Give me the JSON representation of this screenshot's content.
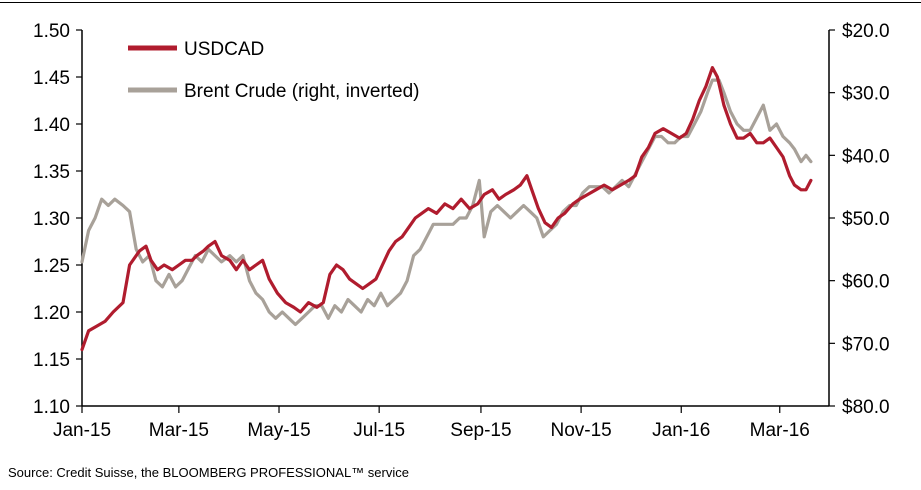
{
  "source": "Source: Credit Suisse, the BLOOMBERG PROFESSIONAL™ service",
  "chart_data": {
    "type": "line",
    "xlim": [
      "2015-01-01",
      "2016-03-31"
    ],
    "x_ticks": [
      {
        "date": "2015-01-01",
        "label": "Jan-15"
      },
      {
        "date": "2015-03-01",
        "label": "Mar-15"
      },
      {
        "date": "2015-05-01",
        "label": "May-15"
      },
      {
        "date": "2015-07-01",
        "label": "Jul-15"
      },
      {
        "date": "2015-09-01",
        "label": "Sep-15"
      },
      {
        "date": "2015-11-01",
        "label": "Nov-15"
      },
      {
        "date": "2016-01-01",
        "label": "Jan-16"
      },
      {
        "date": "2016-03-01",
        "label": "Mar-16"
      }
    ],
    "y_left": {
      "lim": [
        1.1,
        1.5
      ],
      "ticks": [
        "1.10",
        "1.15",
        "1.20",
        "1.25",
        "1.30",
        "1.35",
        "1.40",
        "1.45",
        "1.50"
      ]
    },
    "y_right": {
      "lim": [
        20,
        80
      ],
      "inverted": true,
      "ticks": [
        "$20.0",
        "$30.0",
        "$40.0",
        "$50.0",
        "$60.0",
        "$70.0",
        "$80.0"
      ]
    },
    "legend_position": "top-left",
    "grid": false,
    "series": [
      {
        "name": "USDCAD",
        "axis": "left",
        "color": "#b01c2e",
        "points": [
          [
            "2015-01-01",
            1.16
          ],
          [
            "2015-01-05",
            1.18
          ],
          [
            "2015-01-10",
            1.185
          ],
          [
            "2015-01-15",
            1.19
          ],
          [
            "2015-01-20",
            1.2
          ],
          [
            "2015-01-26",
            1.21
          ],
          [
            "2015-01-30",
            1.25
          ],
          [
            "2015-02-05",
            1.265
          ],
          [
            "2015-02-09",
            1.27
          ],
          [
            "2015-02-12",
            1.255
          ],
          [
            "2015-02-16",
            1.245
          ],
          [
            "2015-02-20",
            1.25
          ],
          [
            "2015-02-25",
            1.245
          ],
          [
            "2015-03-01",
            1.25
          ],
          [
            "2015-03-05",
            1.255
          ],
          [
            "2015-03-09",
            1.255
          ],
          [
            "2015-03-12",
            1.26
          ],
          [
            "2015-03-16",
            1.265
          ],
          [
            "2015-03-19",
            1.27
          ],
          [
            "2015-03-23",
            1.275
          ],
          [
            "2015-03-27",
            1.26
          ],
          [
            "2015-04-01",
            1.255
          ],
          [
            "2015-04-05",
            1.245
          ],
          [
            "2015-04-09",
            1.255
          ],
          [
            "2015-04-13",
            1.245
          ],
          [
            "2015-04-17",
            1.25
          ],
          [
            "2015-04-21",
            1.255
          ],
          [
            "2015-04-25",
            1.235
          ],
          [
            "2015-04-30",
            1.22
          ],
          [
            "2015-05-05",
            1.21
          ],
          [
            "2015-05-10",
            1.205
          ],
          [
            "2015-05-14",
            1.2
          ],
          [
            "2015-05-19",
            1.21
          ],
          [
            "2015-05-24",
            1.205
          ],
          [
            "2015-05-28",
            1.21
          ],
          [
            "2015-06-01",
            1.24
          ],
          [
            "2015-06-05",
            1.25
          ],
          [
            "2015-06-09",
            1.245
          ],
          [
            "2015-06-13",
            1.235
          ],
          [
            "2015-06-17",
            1.23
          ],
          [
            "2015-06-21",
            1.225
          ],
          [
            "2015-06-25",
            1.23
          ],
          [
            "2015-06-29",
            1.235
          ],
          [
            "2015-07-03",
            1.25
          ],
          [
            "2015-07-07",
            1.265
          ],
          [
            "2015-07-11",
            1.275
          ],
          [
            "2015-07-15",
            1.28
          ],
          [
            "2015-07-19",
            1.29
          ],
          [
            "2015-07-23",
            1.3
          ],
          [
            "2015-07-27",
            1.305
          ],
          [
            "2015-07-31",
            1.31
          ],
          [
            "2015-08-05",
            1.305
          ],
          [
            "2015-08-10",
            1.315
          ],
          [
            "2015-08-15",
            1.31
          ],
          [
            "2015-08-20",
            1.32
          ],
          [
            "2015-08-25",
            1.31
          ],
          [
            "2015-08-30",
            1.315
          ],
          [
            "2015-09-03",
            1.325
          ],
          [
            "2015-09-08",
            1.33
          ],
          [
            "2015-09-12",
            1.32
          ],
          [
            "2015-09-16",
            1.325
          ],
          [
            "2015-09-21",
            1.33
          ],
          [
            "2015-09-25",
            1.335
          ],
          [
            "2015-09-29",
            1.345
          ],
          [
            "2015-10-02",
            1.33
          ],
          [
            "2015-10-06",
            1.31
          ],
          [
            "2015-10-10",
            1.295
          ],
          [
            "2015-10-14",
            1.29
          ],
          [
            "2015-10-18",
            1.3
          ],
          [
            "2015-10-22",
            1.305
          ],
          [
            "2015-10-27",
            1.315
          ],
          [
            "2015-10-31",
            1.32
          ],
          [
            "2015-11-05",
            1.325
          ],
          [
            "2015-11-10",
            1.33
          ],
          [
            "2015-11-15",
            1.335
          ],
          [
            "2015-11-20",
            1.33
          ],
          [
            "2015-11-25",
            1.335
          ],
          [
            "2015-11-30",
            1.34
          ],
          [
            "2015-12-04",
            1.345
          ],
          [
            "2015-12-08",
            1.365
          ],
          [
            "2015-12-12",
            1.375
          ],
          [
            "2015-12-16",
            1.39
          ],
          [
            "2015-12-21",
            1.395
          ],
          [
            "2015-12-26",
            1.39
          ],
          [
            "2015-12-31",
            1.385
          ],
          [
            "2016-01-04",
            1.39
          ],
          [
            "2016-01-08",
            1.405
          ],
          [
            "2016-01-12",
            1.425
          ],
          [
            "2016-01-16",
            1.44
          ],
          [
            "2016-01-20",
            1.46
          ],
          [
            "2016-01-23",
            1.45
          ],
          [
            "2016-01-27",
            1.42
          ],
          [
            "2016-01-31",
            1.4
          ],
          [
            "2016-02-04",
            1.385
          ],
          [
            "2016-02-08",
            1.385
          ],
          [
            "2016-02-12",
            1.39
          ],
          [
            "2016-02-16",
            1.38
          ],
          [
            "2016-02-20",
            1.38
          ],
          [
            "2016-02-24",
            1.385
          ],
          [
            "2016-02-28",
            1.375
          ],
          [
            "2016-03-03",
            1.365
          ],
          [
            "2016-03-07",
            1.345
          ],
          [
            "2016-03-10",
            1.335
          ],
          [
            "2016-03-14",
            1.33
          ],
          [
            "2016-03-17",
            1.33
          ],
          [
            "2016-03-20",
            1.34
          ]
        ]
      },
      {
        "name": "Brent Crude (right, inverted)",
        "axis": "right",
        "color": "#a8a199",
        "points": [
          [
            "2015-01-01",
            57
          ],
          [
            "2015-01-05",
            52
          ],
          [
            "2015-01-09",
            50
          ],
          [
            "2015-01-13",
            47
          ],
          [
            "2015-01-17",
            48
          ],
          [
            "2015-01-21",
            47
          ],
          [
            "2015-01-26",
            48
          ],
          [
            "2015-01-30",
            49
          ],
          [
            "2015-02-03",
            55
          ],
          [
            "2015-02-07",
            57
          ],
          [
            "2015-02-11",
            56
          ],
          [
            "2015-02-15",
            60
          ],
          [
            "2015-02-19",
            61
          ],
          [
            "2015-02-23",
            59
          ],
          [
            "2015-02-27",
            61
          ],
          [
            "2015-03-03",
            60
          ],
          [
            "2015-03-07",
            58
          ],
          [
            "2015-03-11",
            56
          ],
          [
            "2015-03-15",
            57
          ],
          [
            "2015-03-19",
            55
          ],
          [
            "2015-03-23",
            56
          ],
          [
            "2015-03-27",
            57
          ],
          [
            "2015-04-01",
            56
          ],
          [
            "2015-04-05",
            57
          ],
          [
            "2015-04-09",
            56
          ],
          [
            "2015-04-13",
            60
          ],
          [
            "2015-04-17",
            62
          ],
          [
            "2015-04-21",
            63
          ],
          [
            "2015-04-25",
            65
          ],
          [
            "2015-04-29",
            66
          ],
          [
            "2015-05-03",
            65
          ],
          [
            "2015-05-07",
            66
          ],
          [
            "2015-05-11",
            67
          ],
          [
            "2015-05-15",
            66
          ],
          [
            "2015-05-19",
            65
          ],
          [
            "2015-05-23",
            64
          ],
          [
            "2015-05-27",
            64
          ],
          [
            "2015-05-31",
            66
          ],
          [
            "2015-06-04",
            64
          ],
          [
            "2015-06-08",
            65
          ],
          [
            "2015-06-12",
            63
          ],
          [
            "2015-06-16",
            64
          ],
          [
            "2015-06-20",
            65
          ],
          [
            "2015-06-24",
            63
          ],
          [
            "2015-06-28",
            64
          ],
          [
            "2015-07-02",
            62
          ],
          [
            "2015-07-06",
            64
          ],
          [
            "2015-07-10",
            63
          ],
          [
            "2015-07-14",
            62
          ],
          [
            "2015-07-18",
            60
          ],
          [
            "2015-07-22",
            56
          ],
          [
            "2015-07-26",
            55
          ],
          [
            "2015-07-30",
            53
          ],
          [
            "2015-08-03",
            51
          ],
          [
            "2015-08-07",
            51
          ],
          [
            "2015-08-11",
            51
          ],
          [
            "2015-08-15",
            51
          ],
          [
            "2015-08-19",
            50
          ],
          [
            "2015-08-23",
            50
          ],
          [
            "2015-08-27",
            48
          ],
          [
            "2015-08-31",
            44
          ],
          [
            "2015-09-03",
            53
          ],
          [
            "2015-09-07",
            49
          ],
          [
            "2015-09-11",
            48
          ],
          [
            "2015-09-15",
            49
          ],
          [
            "2015-09-19",
            50
          ],
          [
            "2015-09-23",
            49
          ],
          [
            "2015-09-27",
            48
          ],
          [
            "2015-10-01",
            49
          ],
          [
            "2015-10-05",
            50
          ],
          [
            "2015-10-09",
            53
          ],
          [
            "2015-10-13",
            52
          ],
          [
            "2015-10-17",
            51
          ],
          [
            "2015-10-21",
            49
          ],
          [
            "2015-10-25",
            48
          ],
          [
            "2015-10-29",
            48
          ],
          [
            "2015-11-02",
            46
          ],
          [
            "2015-11-06",
            45
          ],
          [
            "2015-11-10",
            45
          ],
          [
            "2015-11-14",
            45
          ],
          [
            "2015-11-18",
            46
          ],
          [
            "2015-11-22",
            45
          ],
          [
            "2015-11-26",
            44
          ],
          [
            "2015-11-30",
            45
          ],
          [
            "2015-12-04",
            43
          ],
          [
            "2015-12-08",
            41
          ],
          [
            "2015-12-12",
            39
          ],
          [
            "2015-12-16",
            37
          ],
          [
            "2015-12-20",
            37
          ],
          [
            "2015-12-24",
            38
          ],
          [
            "2015-12-28",
            38
          ],
          [
            "2016-01-01",
            37
          ],
          [
            "2016-01-05",
            37
          ],
          [
            "2016-01-09",
            35
          ],
          [
            "2016-01-13",
            33
          ],
          [
            "2016-01-17",
            30
          ],
          [
            "2016-01-20",
            28
          ],
          [
            "2016-01-24",
            28
          ],
          [
            "2016-01-27",
            30
          ],
          [
            "2016-01-31",
            33
          ],
          [
            "2016-02-04",
            35
          ],
          [
            "2016-02-08",
            36
          ],
          [
            "2016-02-12",
            36
          ],
          [
            "2016-02-16",
            34
          ],
          [
            "2016-02-20",
            32
          ],
          [
            "2016-02-24",
            36
          ],
          [
            "2016-02-28",
            35
          ],
          [
            "2016-03-03",
            37
          ],
          [
            "2016-03-07",
            38
          ],
          [
            "2016-03-10",
            39
          ],
          [
            "2016-03-14",
            41
          ],
          [
            "2016-03-17",
            40
          ],
          [
            "2016-03-20",
            41
          ]
        ]
      }
    ]
  }
}
